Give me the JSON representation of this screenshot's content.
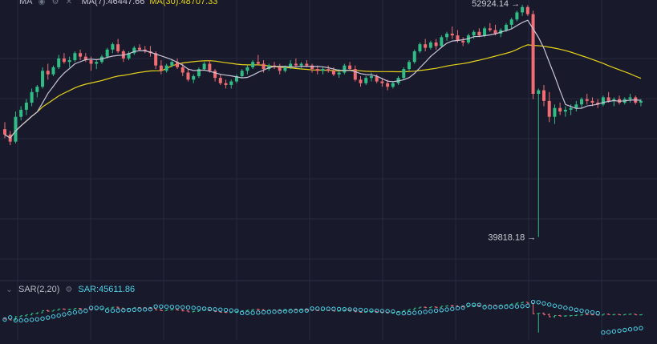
{
  "theme": {
    "background": "#181a2b",
    "grid": "#262a3d",
    "up": "#2fbd85",
    "down": "#f06d73",
    "ma7": "#c9c4d8",
    "ma30": "#e6d21a",
    "sar_up": "#2fbd85",
    "sar_down": "#f06d73",
    "sar_dots": "#4fd1e8",
    "divider": "#2b2f45"
  },
  "main_legend": {
    "label": "MA",
    "ma7_label": "MA(7):46447.66",
    "ma30_label": "MA(30):48707.33",
    "icons": [
      "eye-icon",
      "gear-icon",
      "close-icon"
    ]
  },
  "sar_legend": {
    "label": "SAR(2,20)",
    "value_label": "SAR:45611.86",
    "icons": [
      "gear-icon"
    ]
  },
  "annotations": {
    "high": "52924.14 →",
    "low": "39818.18 →"
  },
  "chart_data": [
    {
      "type": "candlestick",
      "title": "",
      "ylim": [
        37800,
        53200
      ],
      "grid": true,
      "series": [
        {
          "name": "MA(7)",
          "kind": "line"
        },
        {
          "name": "MA(30)",
          "kind": "line"
        }
      ],
      "candles": [
        [
          45900,
          46300,
          45400,
          45600
        ],
        [
          45600,
          45800,
          45000,
          45200
        ],
        [
          45200,
          46900,
          45100,
          46600
        ],
        [
          46600,
          47200,
          46400,
          47000
        ],
        [
          47000,
          47600,
          46700,
          47400
        ],
        [
          47400,
          48200,
          47200,
          48000
        ],
        [
          48000,
          48400,
          47700,
          48300
        ],
        [
          48300,
          49400,
          48200,
          49200
        ],
        [
          49200,
          49600,
          48700,
          49000
        ],
        [
          49000,
          49500,
          48900,
          49400
        ],
        [
          49400,
          50100,
          49300,
          49900
        ],
        [
          49900,
          50200,
          49600,
          49700
        ],
        [
          49700,
          50000,
          49400,
          49800
        ],
        [
          49800,
          50300,
          49700,
          50200
        ],
        [
          50200,
          50400,
          49800,
          50000
        ],
        [
          50000,
          50200,
          49700,
          49800
        ],
        [
          49800,
          50000,
          49200,
          49600
        ],
        [
          49600,
          49800,
          49300,
          49700
        ],
        [
          49700,
          50100,
          49600,
          50000
        ],
        [
          50000,
          50500,
          49900,
          50400
        ],
        [
          50400,
          50800,
          50200,
          50700
        ],
        [
          50700,
          51000,
          50200,
          50300
        ],
        [
          50300,
          50400,
          49700,
          49900
        ],
        [
          49900,
          50300,
          49800,
          50200
        ],
        [
          50200,
          50600,
          50100,
          50500
        ],
        [
          50500,
          50700,
          50300,
          50400
        ],
        [
          50400,
          50600,
          50200,
          50300
        ],
        [
          50300,
          50600,
          50000,
          50200
        ],
        [
          50200,
          50300,
          49300,
          49500
        ],
        [
          49500,
          49800,
          49000,
          49200
        ],
        [
          49200,
          49600,
          49100,
          49500
        ],
        [
          49500,
          49800,
          49400,
          49700
        ],
        [
          49700,
          49900,
          49300,
          49400
        ],
        [
          49400,
          49600,
          48900,
          49100
        ],
        [
          49100,
          49300,
          48600,
          48700
        ],
        [
          48700,
          49000,
          48500,
          48900
        ],
        [
          48900,
          49400,
          48800,
          49300
        ],
        [
          49300,
          49700,
          49200,
          49600
        ],
        [
          49600,
          49800,
          49100,
          49200
        ],
        [
          49200,
          49300,
          48600,
          48800
        ],
        [
          48800,
          49000,
          48400,
          48500
        ],
        [
          48500,
          48700,
          48200,
          48400
        ],
        [
          48400,
          48700,
          48200,
          48600
        ],
        [
          48600,
          49000,
          48500,
          48900
        ],
        [
          48900,
          49300,
          48800,
          49200
        ],
        [
          49200,
          49500,
          49000,
          49400
        ],
        [
          49400,
          49800,
          49300,
          49700
        ],
        [
          49700,
          50100,
          49500,
          49600
        ],
        [
          49600,
          49800,
          49100,
          49300
        ],
        [
          49300,
          49600,
          49200,
          49500
        ],
        [
          49500,
          49700,
          49300,
          49400
        ],
        [
          49400,
          49600,
          49000,
          49200
        ],
        [
          49200,
          49500,
          49100,
          49400
        ],
        [
          49400,
          49800,
          49300,
          49600
        ],
        [
          49600,
          49900,
          49400,
          49500
        ],
        [
          49500,
          49700,
          49300,
          49600
        ],
        [
          49600,
          49800,
          49400,
          49500
        ],
        [
          49500,
          49600,
          49100,
          49300
        ],
        [
          49300,
          49500,
          49000,
          49200
        ],
        [
          49200,
          49400,
          49000,
          49300
        ],
        [
          49300,
          49500,
          49100,
          49200
        ],
        [
          49200,
          49400,
          48900,
          49000
        ],
        [
          49000,
          49300,
          48800,
          49100
        ],
        [
          49100,
          49600,
          49000,
          49500
        ],
        [
          49500,
          49700,
          49200,
          49300
        ],
        [
          49300,
          49500,
          48600,
          48700
        ],
        [
          48700,
          48900,
          48300,
          48500
        ],
        [
          48500,
          48900,
          48400,
          48800
        ],
        [
          48800,
          49100,
          48600,
          48900
        ],
        [
          48900,
          49000,
          48500,
          48600
        ],
        [
          48600,
          48800,
          48300,
          48500
        ],
        [
          48500,
          48700,
          48100,
          48300
        ],
        [
          48300,
          48600,
          48200,
          48500
        ],
        [
          48500,
          48900,
          48400,
          48800
        ],
        [
          48800,
          49400,
          48700,
          49300
        ],
        [
          49300,
          49800,
          49200,
          49700
        ],
        [
          49700,
          50400,
          49600,
          50300
        ],
        [
          50300,
          50800,
          50200,
          50700
        ],
        [
          50700,
          51000,
          50300,
          50500
        ],
        [
          50500,
          50900,
          50400,
          50800
        ],
        [
          50800,
          51000,
          50400,
          50600
        ],
        [
          50600,
          51200,
          50500,
          51100
        ],
        [
          51100,
          51400,
          50900,
          51300
        ],
        [
          51300,
          51700,
          51000,
          51200
        ],
        [
          51200,
          51500,
          50800,
          50900
        ],
        [
          50900,
          51100,
          50600,
          50800
        ],
        [
          50800,
          51300,
          50700,
          51200
        ],
        [
          51200,
          51500,
          51000,
          51400
        ],
        [
          51400,
          51600,
          51100,
          51200
        ],
        [
          51200,
          51700,
          51100,
          51600
        ],
        [
          51600,
          51900,
          51400,
          51500
        ],
        [
          51500,
          51800,
          51200,
          51300
        ],
        [
          51300,
          51600,
          51100,
          51500
        ],
        [
          51500,
          51900,
          51400,
          51800
        ],
        [
          51800,
          52200,
          51600,
          52100
        ],
        [
          52100,
          52600,
          52000,
          52500
        ],
        [
          52500,
          52924.14,
          52300,
          52800
        ],
        [
          52800,
          52900,
          52300,
          52400
        ],
        [
          52400,
          52600,
          47600,
          47900
        ],
        [
          47900,
          48200,
          39818.18,
          48100
        ],
        [
          48100,
          48400,
          47200,
          47500
        ],
        [
          47500,
          48000,
          46300,
          46600
        ],
        [
          46600,
          47300,
          46200,
          47100
        ],
        [
          47100,
          47400,
          46700,
          46900
        ],
        [
          46900,
          47200,
          46600,
          47000
        ],
        [
          47000,
          47300,
          46700,
          47100
        ],
        [
          47100,
          47500,
          46900,
          47300
        ],
        [
          47300,
          47700,
          47100,
          47600
        ],
        [
          47600,
          47900,
          47300,
          47500
        ],
        [
          47500,
          47700,
          47200,
          47400
        ],
        [
          47400,
          47600,
          47100,
          47300
        ],
        [
          47300,
          47800,
          47200,
          47700
        ],
        [
          47700,
          48000,
          47400,
          47500
        ],
        [
          47500,
          47700,
          47200,
          47600
        ],
        [
          47600,
          47800,
          47300,
          47400
        ],
        [
          47400,
          47700,
          47300,
          47600
        ],
        [
          47600,
          47900,
          47400,
          47700
        ],
        [
          47700,
          47800,
          47300,
          47400
        ],
        [
          47400,
          47600,
          47200,
          47500
        ]
      ],
      "high_label": 52924.14,
      "low_label": 39818.18
    },
    {
      "type": "line",
      "title": "",
      "series": [
        {
          "name": "SAR(2,20)",
          "kind": "dots"
        }
      ]
    }
  ]
}
